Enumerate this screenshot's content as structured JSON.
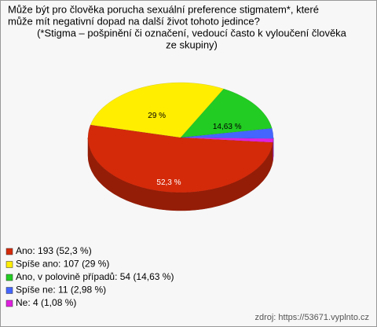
{
  "chart_data": {
    "type": "pie",
    "title": [
      "Může být pro člověka porucha sexuální preference stigmatem*, které",
      "může mít negativní dopad na další život tohoto jedince?",
      "(*Stigma – pošpinění či označení, vedoucí často k vyloučení člověka",
      "ze skupiny)"
    ],
    "categories": [
      "Ano: 193 (52,3 %)",
      "Spíše ano: 107 (29 %)",
      "Ano, v polovině případů: 54 (14,63 %)",
      "Spíše ne: 11 (2,98 %)",
      "Ne: 4 (1,08 %)"
    ],
    "values": [
      52.3,
      29,
      14.63,
      2.98,
      1.08
    ],
    "value_labels": [
      "52,3 %",
      "29 %",
      "14,63 %",
      null,
      null
    ],
    "colors": [
      "#d42a0a",
      "#ffee00",
      "#22cc22",
      "#4466ff",
      "#e020e0"
    ],
    "source": "zdroj: https://53671.vyplnto.cz"
  }
}
